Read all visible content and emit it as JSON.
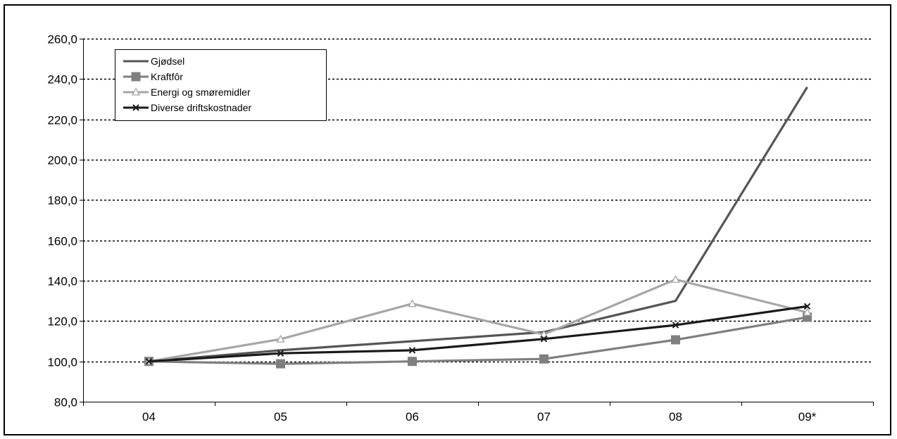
{
  "chart_data": {
    "type": "line",
    "categories": [
      "04",
      "05",
      "06",
      "07",
      "08",
      "09*"
    ],
    "ylim": [
      80,
      260
    ],
    "yticks": [
      80,
      100,
      120,
      140,
      160,
      180,
      200,
      220,
      240,
      260
    ],
    "ytick_labels": [
      "80,0",
      "100,0",
      "120,0",
      "140,0",
      "160,0",
      "180,0",
      "200,0",
      "220,0",
      "240,0",
      "260,0"
    ],
    "grid": "horizontal dotted",
    "legend_position": "top-left",
    "series": [
      {
        "name": "Gjødsel",
        "values": [
          100,
          105.5,
          110,
          114.5,
          130,
          236
        ],
        "color": "#555555",
        "marker": "none"
      },
      {
        "name": "Kraftfôr",
        "values": [
          100,
          98.8,
          100,
          101.2,
          110.7,
          121.9
        ],
        "color": "#7f7f7f",
        "marker": "square"
      },
      {
        "name": "Energi og smøremidler",
        "values": [
          100,
          111,
          128.6,
          113.4,
          140.6,
          124.3
        ],
        "color": "#a6a6a6",
        "marker": "triangle"
      },
      {
        "name": "Diverse driftskostnader",
        "values": [
          100,
          104,
          105.5,
          111.1,
          118,
          127.3
        ],
        "color": "#1a1a1a",
        "marker": "x"
      }
    ]
  }
}
